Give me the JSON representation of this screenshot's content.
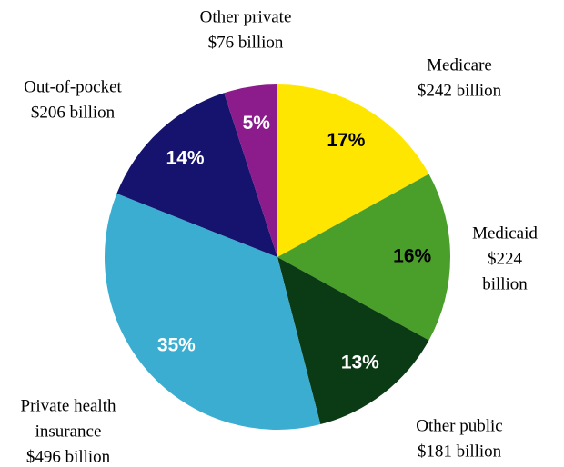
{
  "chart_data": {
    "type": "pie",
    "categories": [
      [
        "Medicare",
        "$242 billion"
      ],
      [
        "Medicaid",
        "$224",
        "billion"
      ],
      [
        "Other public",
        "$181 billion"
      ],
      [
        "Private health",
        "insurance",
        "$496 billion"
      ],
      [
        "Out-of-pocket",
        "$206 billion"
      ],
      [
        "Other private",
        "$76 billion"
      ]
    ],
    "values": [
      17,
      16,
      13,
      35,
      14,
      5
    ],
    "value_labels": [
      "17%",
      "16%",
      "13%",
      "35%",
      "14%",
      "5%"
    ],
    "colors": [
      "#ffe600",
      "#4a9e2a",
      "#0b3b14",
      "#3aadd1",
      "#15136e",
      "#8c1b8b"
    ],
    "label_colors": [
      "#000000",
      "#000000",
      "#ffffff",
      "#ffffff",
      "#ffffff",
      "#ffffff"
    ]
  }
}
